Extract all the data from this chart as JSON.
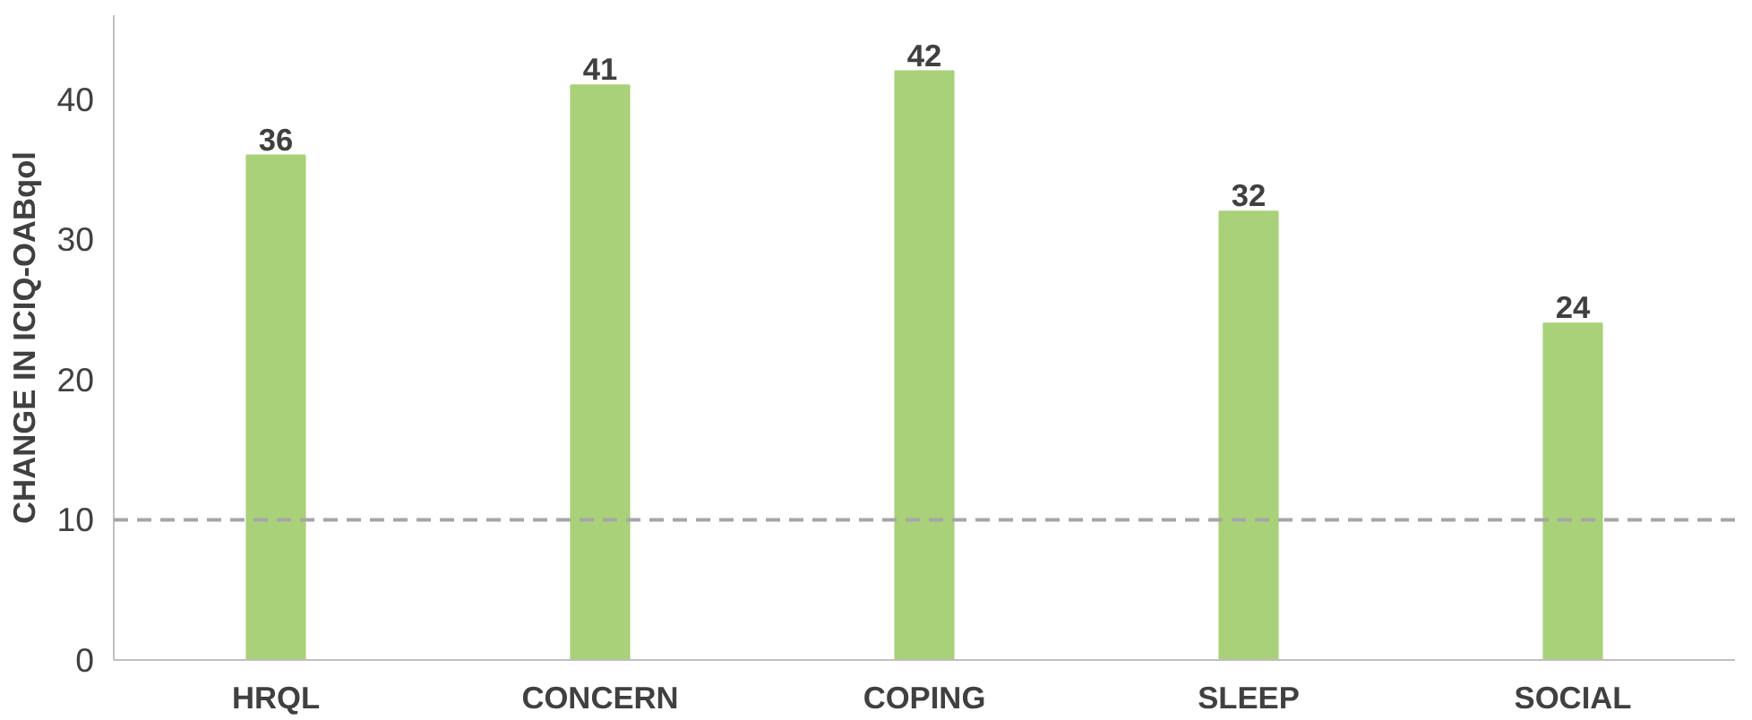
{
  "chart_data": {
    "type": "bar",
    "ylabel": "CHANGE IN ICIQ-OABqol",
    "categories": [
      "HRQL",
      "CONCERN",
      "COPING",
      "SLEEP",
      "SOCIAL"
    ],
    "values": [
      36,
      41,
      42,
      32,
      24
    ],
    "color": "#a9d179",
    "ylim": [
      0,
      46
    ],
    "yticks": [
      0,
      10,
      20,
      30,
      40
    ],
    "grid": false,
    "data_labels": true,
    "ref_lines": [
      {
        "axis": "y",
        "value": 10,
        "label": null,
        "color": "#a6a6a6",
        "line_style": "dashed"
      }
    ]
  }
}
